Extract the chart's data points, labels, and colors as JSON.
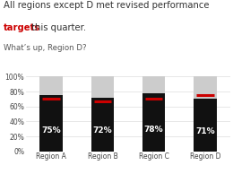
{
  "categories": [
    "Region A",
    "Region B",
    "Region C",
    "Region D"
  ],
  "bar_values": [
    75,
    72,
    78,
    71
  ],
  "background_values": [
    100,
    100,
    100,
    100
  ],
  "target_lines": [
    70,
    67,
    70,
    75
  ],
  "bar_color": "#111111",
  "bg_color": "#cccccc",
  "target_color": "#cc0000",
  "label_color": "#ffffff",
  "ylim": [
    0,
    100
  ],
  "yticks": [
    0,
    20,
    40,
    60,
    80,
    100
  ],
  "ytick_labels": [
    "0%",
    "20%",
    "40%",
    "60%",
    "80%",
    "100%"
  ],
  "bar_width": 0.45,
  "background_color": "#ffffff",
  "title_fontsize": 7.2,
  "subtitle_fontsize": 6.2,
  "label_fontsize": 6.5,
  "axis_fontsize": 5.5,
  "line1": "All regions except D met revised performance",
  "line2_black1": "",
  "line2_red": "targets",
  "line2_black2": " this quarter.",
  "line3": "What’s up, Region D?"
}
